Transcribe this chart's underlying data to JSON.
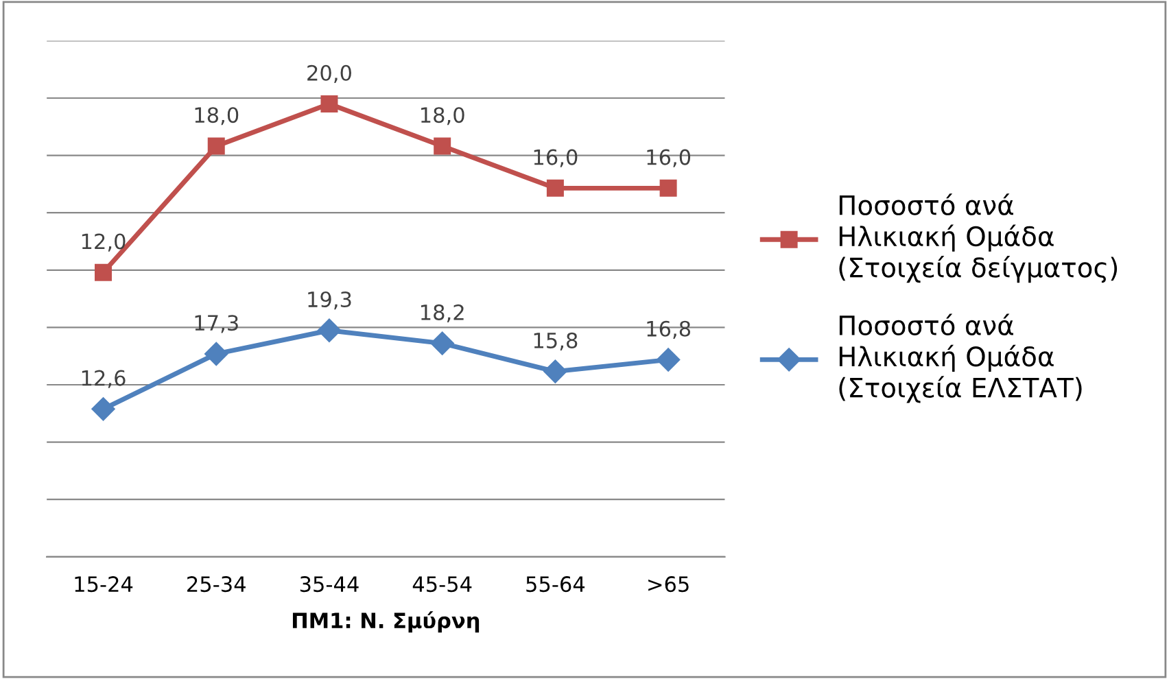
{
  "chart_data": {
    "type": "line",
    "xlabel": "ΠΜ1: Ν. Σμύρνη",
    "categories": [
      "15-24",
      "25-34",
      "35-44",
      "45-54",
      "55-64",
      ">65"
    ],
    "series": [
      {
        "name": "Ποσοστό ανά\nΗλικιακή Ομάδα\n(Στοιχεία δείγματος)",
        "color": "#c0504d",
        "marker": "square",
        "values": [
          12.0,
          18.0,
          20.0,
          18.0,
          16.0,
          16.0
        ],
        "value_labels": [
          "12,0",
          "18,0",
          "20,0",
          "18,0",
          "16,0",
          "16,0"
        ]
      },
      {
        "name": "Ποσοστό ανά\nΗλικιακή Ομάδα\n(Στοιχεία ΕΛΣΤΑΤ)",
        "color": "#4f81bd",
        "axis": "y2",
        "marker": "diamond",
        "values": [
          12.6,
          17.3,
          19.3,
          18.2,
          15.8,
          16.8
        ],
        "value_labels": [
          "12,6",
          "17,3",
          "19,3",
          "18,2",
          "15,8",
          "16,8"
        ]
      }
    ],
    "ylim": [
      -1.5,
      23
    ],
    "y2lim": [
      0,
      44
    ],
    "tick_labels": "x",
    "grid": "y",
    "legend": "right"
  }
}
